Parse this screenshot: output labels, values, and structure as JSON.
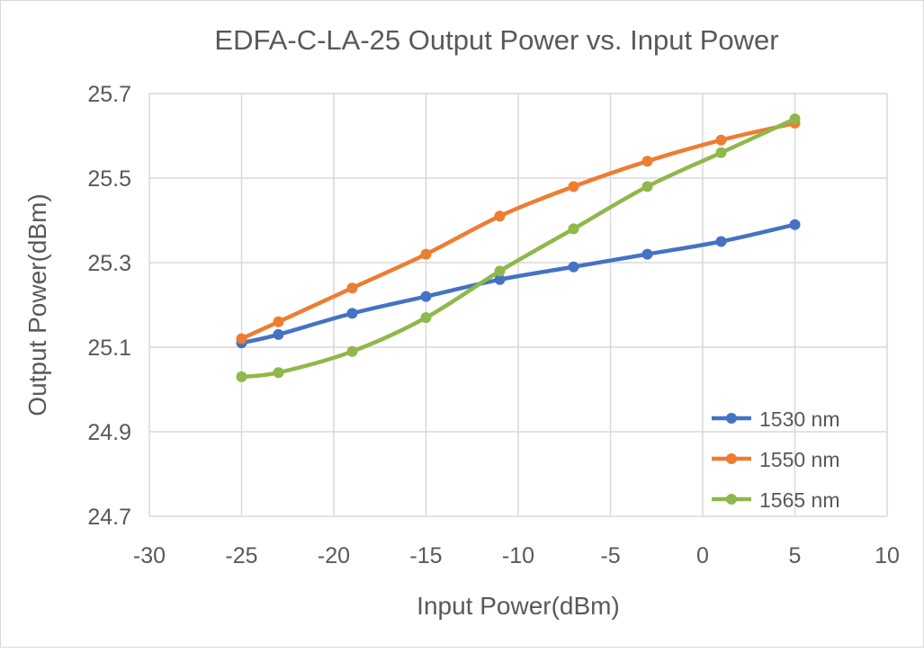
{
  "chart_data": {
    "type": "line",
    "title": "EDFA-C-LA-25  Output Power vs. Input Power",
    "xlabel": "Input Power(dBm)",
    "ylabel": "Output Power(dBm)",
    "xlim": [
      -30,
      10
    ],
    "ylim": [
      24.7,
      25.7
    ],
    "xticks": [
      "-30",
      "-25",
      "-20",
      "-15",
      "-10",
      "-5",
      "0",
      "5",
      "10"
    ],
    "yticks": [
      "24.7",
      "24.9",
      "25.1",
      "25.3",
      "25.5",
      "25.7"
    ],
    "grid": true,
    "smooth": true,
    "legend_position": "bottom-right",
    "x": [
      -25,
      -23,
      -19,
      -15,
      -11,
      -7,
      -3,
      1,
      5
    ],
    "series": [
      {
        "name": "1530 nm",
        "color": "#4472c4",
        "values": [
          25.11,
          25.13,
          25.18,
          25.22,
          25.26,
          25.29,
          25.32,
          25.35,
          25.39
        ]
      },
      {
        "name": "1550 nm",
        "color": "#ed7d31",
        "values": [
          25.12,
          25.16,
          25.24,
          25.32,
          25.41,
          25.48,
          25.54,
          25.59,
          25.63
        ]
      },
      {
        "name": "1565 nm",
        "color": "#8fb84a",
        "values": [
          25.03,
          25.04,
          25.09,
          25.17,
          25.28,
          25.38,
          25.48,
          25.56,
          25.64
        ]
      }
    ]
  }
}
